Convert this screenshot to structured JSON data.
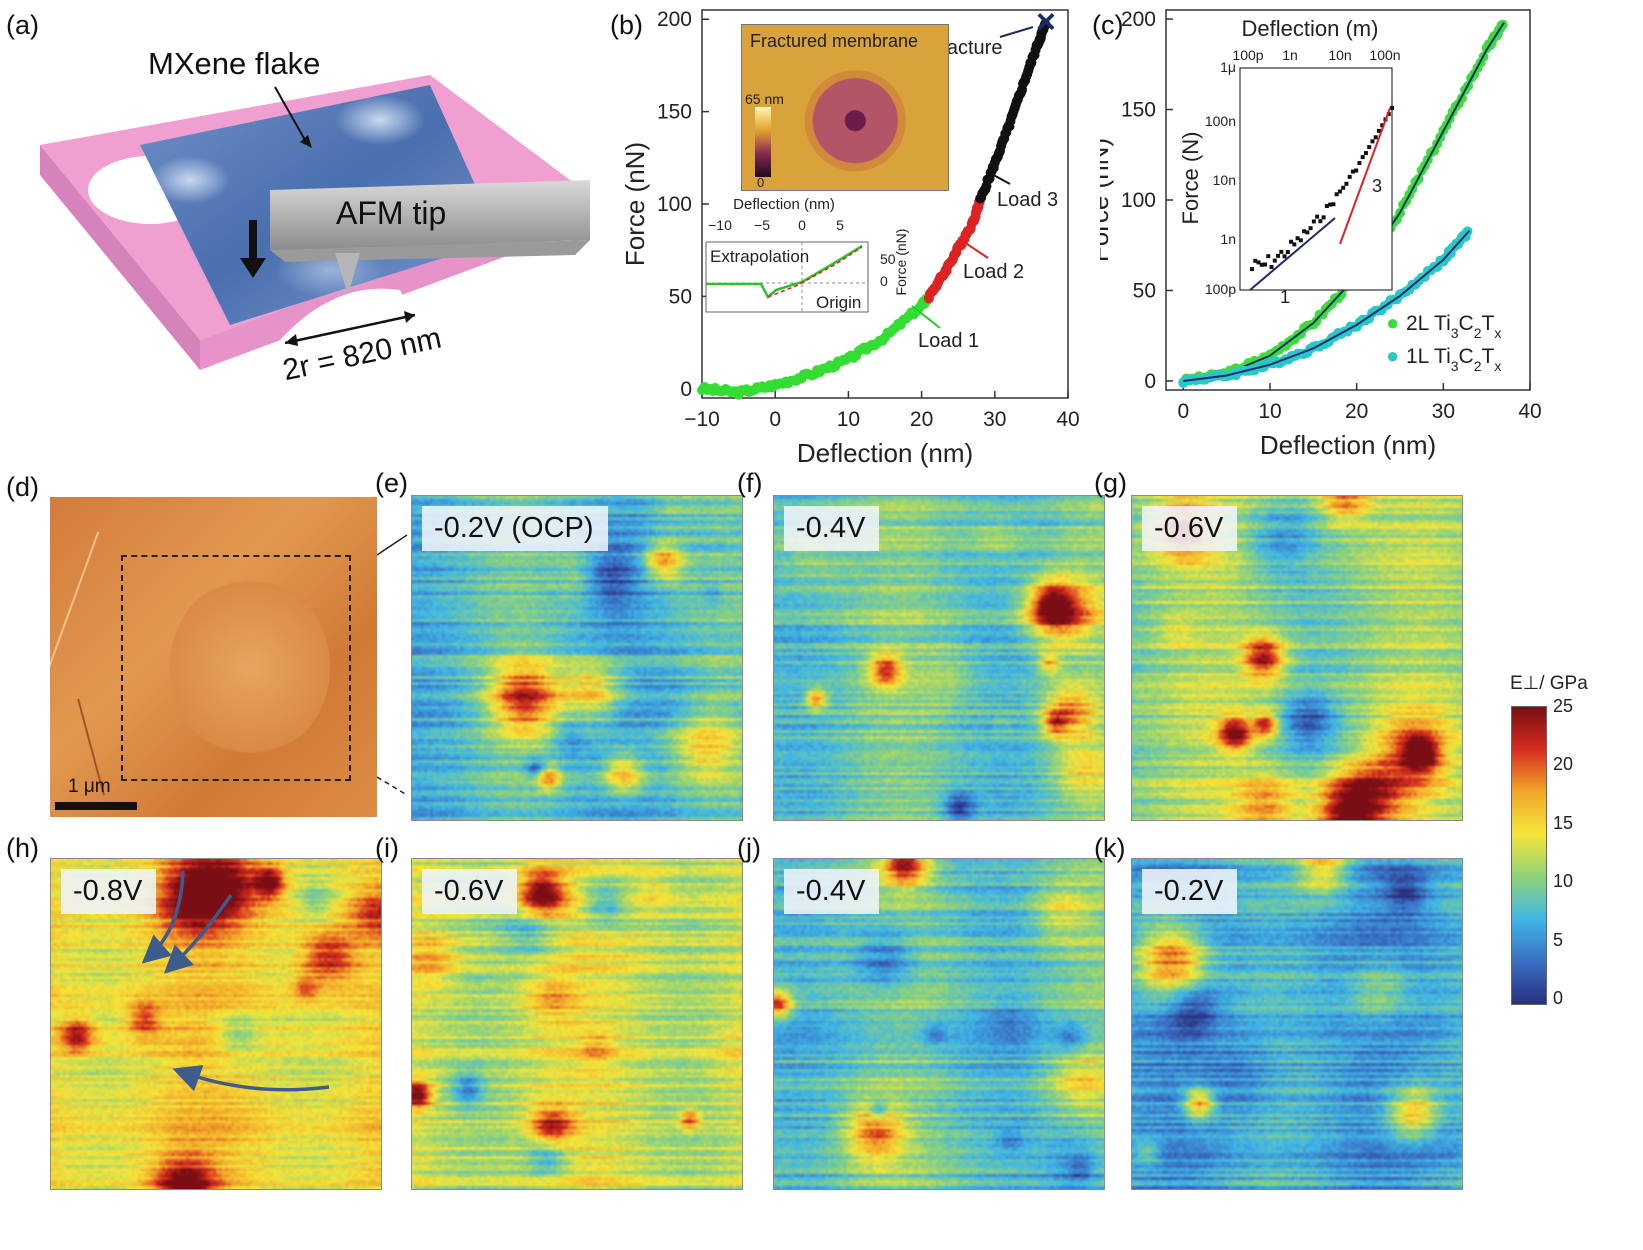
{
  "panel_a": {
    "letter": "(a)",
    "flake_label": "MXene flake",
    "tip_label": "AFM tip",
    "radius_label": "2r = 820 nm"
  },
  "panel_b": {
    "letter": "(b)",
    "inset_title": "Fractured membrane",
    "inset_scale_max": "65 nm",
    "inset_scale_min": "0",
    "inset2_xlabel": "Deflection (nm)",
    "inset2_ylabel": "Force (nN)",
    "inset2_ticks_x": [
      "−10",
      "−5",
      "0",
      "5"
    ],
    "inset2_ticks_y": [
      "50",
      "0"
    ],
    "inset2_extrapolation": "Extrapolation",
    "inset2_origin": "Origin",
    "annot_fracture": "Fracture",
    "annot_load1": "Load 1",
    "annot_load2": "Load 2",
    "annot_load3": "Load 3"
  },
  "panel_c": {
    "letter": "(c)",
    "inset_xlabel": "Deflection (m)",
    "inset_ylabel": "Force (N)",
    "inset_x_ticks": [
      "100p",
      "1n",
      "10n",
      "100n"
    ],
    "inset_y_ticks": [
      "1μ",
      "100n",
      "10n",
      "1n",
      "100p"
    ],
    "slope1": "1",
    "slope3": "3",
    "legend": [
      {
        "sym": "●",
        "label_base": "2L Ti",
        "color": "#3ddc3d"
      },
      {
        "sym": "●",
        "label_base": "1L Ti",
        "color": "#28c8c8"
      }
    ]
  },
  "chart_data": [
    {
      "type": "scatter",
      "title": "",
      "xlabel": "Deflection (nm)",
      "ylabel": "Force (nN)",
      "xlim": [
        -10,
        40
      ],
      "ylim": [
        -5,
        205
      ],
      "x_ticks": [
        "−10",
        "0",
        "10",
        "20",
        "30",
        "40"
      ],
      "y_ticks": [
        "0",
        "50",
        "100",
        "150",
        "200"
      ],
      "series": [
        {
          "name": "Load 1",
          "color": "#33dd33",
          "x": [
            -10,
            -5,
            0,
            5,
            10,
            15,
            20,
            21
          ],
          "y": [
            0,
            -2,
            2,
            8,
            16,
            28,
            45,
            50
          ]
        },
        {
          "name": "Load 2",
          "color": "#dd2222",
          "x": [
            21,
            23,
            25,
            27,
            28
          ],
          "y": [
            50,
            62,
            76,
            90,
            102
          ]
        },
        {
          "name": "Load 3",
          "color": "#111111",
          "x": [
            28,
            30,
            32,
            34,
            36,
            37
          ],
          "y": [
            102,
            122,
            143,
            166,
            188,
            198
          ]
        }
      ]
    },
    {
      "type": "scatter",
      "title": "",
      "xlabel": "Deflection (nm)",
      "ylabel": "Force (nN)",
      "xlim": [
        -2,
        40
      ],
      "ylim": [
        -5,
        205
      ],
      "x_ticks": [
        "0",
        "10",
        "20",
        "30",
        "40"
      ],
      "y_ticks": [
        "0",
        "50",
        "100",
        "150",
        "200"
      ],
      "series": [
        {
          "name": "2L Ti3C2Tx",
          "color": "#3ddc3d",
          "x": [
            0,
            5,
            10,
            15,
            20,
            25,
            30,
            35,
            37
          ],
          "y": [
            0,
            4,
            14,
            32,
            58,
            93,
            138,
            183,
            198
          ]
        },
        {
          "name": "1L Ti3C2Tx",
          "color": "#28c8c8",
          "x": [
            0,
            5,
            10,
            15,
            20,
            25,
            30,
            33
          ],
          "y": [
            0,
            3,
            9,
            18,
            31,
            47,
            67,
            83
          ]
        }
      ]
    }
  ],
  "maps": [
    {
      "letter": "(e)",
      "label": "-0.2V (OCP)",
      "level": 0.32,
      "seed": 11
    },
    {
      "letter": "(f)",
      "label": "-0.4V",
      "level": 0.36,
      "seed": 23
    },
    {
      "letter": "(g)",
      "label": "-0.6V",
      "level": 0.44,
      "seed": 37
    },
    {
      "letter": "(h)",
      "label": "-0.8V",
      "level": 0.6,
      "seed": 41
    },
    {
      "letter": "(i)",
      "label": "-0.6V",
      "level": 0.52,
      "seed": 53
    },
    {
      "letter": "(j)",
      "label": "-0.4V",
      "level": 0.36,
      "seed": 67
    },
    {
      "letter": "(k)",
      "label": "-0.2V",
      "level": 0.26,
      "seed": 79
    }
  ],
  "panel_d": {
    "letter": "(d)",
    "scale_label": "1 μm"
  },
  "colorbar": {
    "title": "E⊥/ GPa",
    "ticks": [
      "25",
      "20",
      "15",
      "10",
      "5",
      "0"
    ],
    "stops": [
      "#7a0e14",
      "#d62c1f",
      "#f2a72a",
      "#f5e63a",
      "#8fd27a",
      "#3fb6e6",
      "#3a6fc4",
      "#2a2f7d"
    ]
  }
}
